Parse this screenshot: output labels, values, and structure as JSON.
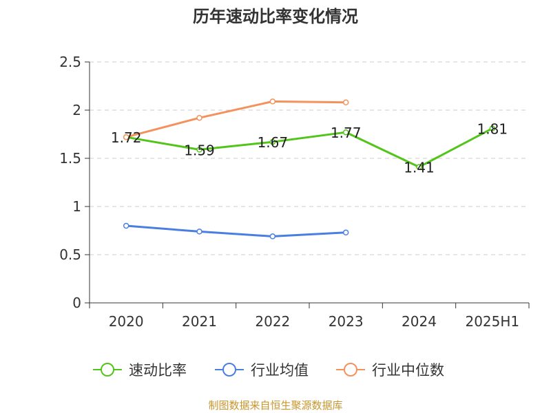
{
  "chart_data": {
    "type": "line",
    "title": "历年速动比率变化情况",
    "categories": [
      "2020",
      "2021",
      "2022",
      "2023",
      "2024",
      "2025H1"
    ],
    "y_ticks": [
      "0",
      "0.5",
      "1",
      "1.5",
      "2",
      "2.5"
    ],
    "ylim": [
      0,
      2.5
    ],
    "grid": true,
    "legend_position": "bottom",
    "series": [
      {
        "name": "速动比率",
        "color": "#52c41a",
        "values": [
          1.72,
          1.59,
          1.67,
          1.77,
          1.41,
          1.81
        ],
        "labels": [
          "1.72",
          "1.59",
          "1.67",
          "1.77",
          "1.41",
          "1.81"
        ]
      },
      {
        "name": "行业均值",
        "color": "#4a7ee0",
        "values": [
          0.8,
          0.74,
          0.69,
          0.73,
          null,
          null
        ]
      },
      {
        "name": "行业中位数",
        "color": "#f5915d",
        "values": [
          1.72,
          1.92,
          2.09,
          2.08,
          null,
          null
        ]
      }
    ]
  },
  "footer": "制图数据来自恒生聚源数据库"
}
